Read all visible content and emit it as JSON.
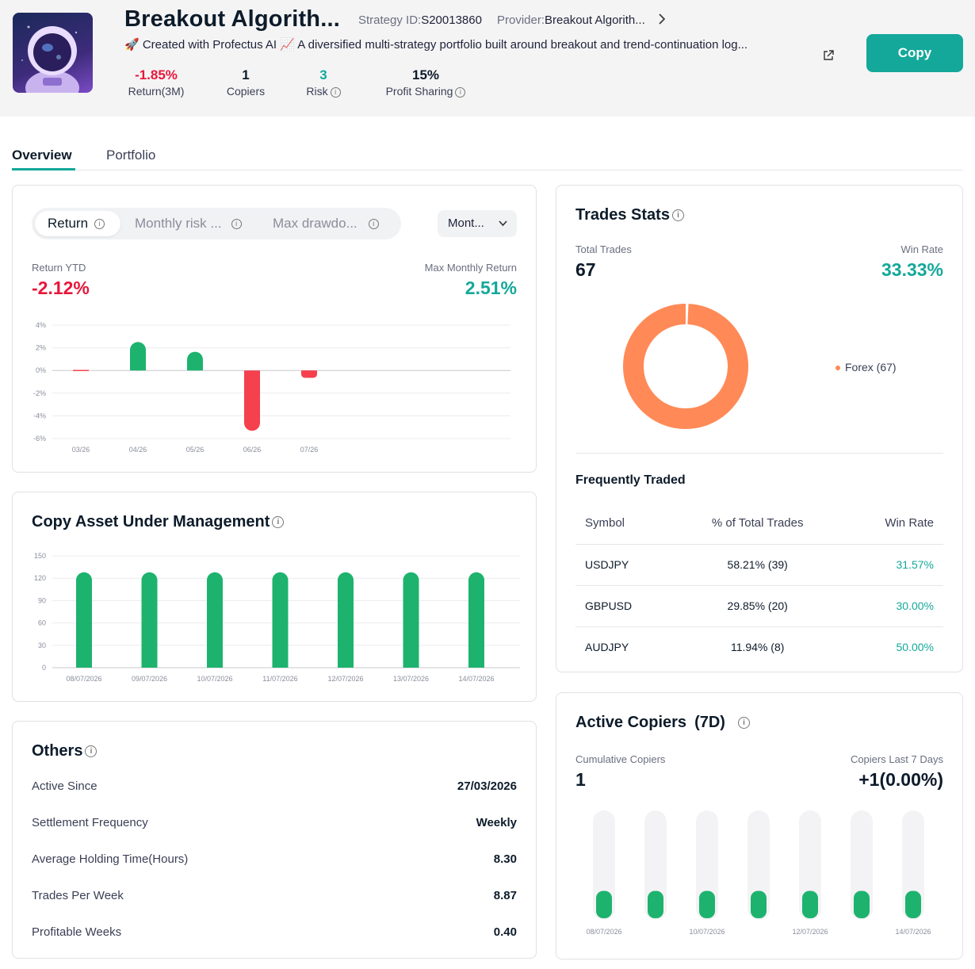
{
  "header": {
    "title": "Breakout Algorith...",
    "strategy_id_label": "Strategy ID:",
    "strategy_id": "S20013860",
    "provider_label": "Provider:",
    "provider": "Breakout Algorith...",
    "description": "🚀 Created with Profectus AI 📈 A diversified multi-strategy portfolio built around breakout and trend-continuation log...",
    "copy_label": "Copy",
    "stats": [
      {
        "value": "-1.85%",
        "label": "Return(3M)"
      },
      {
        "value": "1",
        "label": "Copiers"
      },
      {
        "value": "3",
        "label": "Risk"
      },
      {
        "value": "15%",
        "label": "Profit Sharing"
      }
    ]
  },
  "tabs": [
    {
      "label": "Overview"
    },
    {
      "label": "Portfolio"
    }
  ],
  "return_card": {
    "segments": [
      "Return",
      "Monthly risk ...",
      "Max drawdo..."
    ],
    "dropdown": "Mont...",
    "ytd_label": "Return YTD",
    "ytd_value": "-2.12%",
    "max_label": "Max Monthly Return",
    "max_value": "2.51%"
  },
  "aum_card": {
    "title": "Copy Asset Under Management"
  },
  "others": {
    "title": "Others",
    "rows": [
      {
        "label": "Active Since",
        "value": "27/03/2026"
      },
      {
        "label": "Settlement Frequency",
        "value": "Weekly"
      },
      {
        "label": "Average Holding Time(Hours)",
        "value": "8.30"
      },
      {
        "label": "Trades Per Week",
        "value": "8.87"
      },
      {
        "label": "Profitable Weeks",
        "value": "0.40"
      }
    ]
  },
  "trades": {
    "title": "Trades Stats",
    "total_label": "Total Trades",
    "total_value": "67",
    "winrate_label": "Win Rate",
    "winrate_value": "33.33%",
    "legend": "Forex (67)",
    "freq_title": "Frequently Traded",
    "columns": [
      "Symbol",
      "% of Total Trades",
      "Win Rate"
    ],
    "rows": [
      {
        "symbol": "USDJPY",
        "pct": "58.21% (39)",
        "win": "31.57%"
      },
      {
        "symbol": "GBPUSD",
        "pct": "29.85% (20)",
        "win": "30.00%"
      },
      {
        "symbol": "AUDJPY",
        "pct": "11.94% (8)",
        "win": "50.00%"
      }
    ]
  },
  "copiers": {
    "title": "Active Copiers",
    "title_suffix": "(7D)",
    "cum_label": "Cumulative Copiers",
    "cum_value": "1",
    "last7_label": "Copiers Last 7 Days",
    "last7_value": "+1(0.00%)"
  },
  "colors": {
    "teal": "#14a89a",
    "green": "#1db36e",
    "red": "#f5414d",
    "orange": "#ff8a57"
  },
  "chart_data": [
    {
      "type": "bar",
      "title": "",
      "categories": [
        "03/26",
        "04/26",
        "05/26",
        "06/26",
        "07/26"
      ],
      "values": [
        -0.01,
        2.51,
        1.65,
        -5.32,
        -0.65
      ],
      "yticks": [
        "4%",
        "2%",
        "0%",
        "-2%",
        "-4%",
        "-6%"
      ],
      "ylim": [
        -6,
        4
      ]
    },
    {
      "type": "bar",
      "title": "Copy Asset Under Management",
      "categories": [
        "08/07/2026",
        "09/07/2026",
        "10/07/2026",
        "11/07/2026",
        "12/07/2026",
        "13/07/2026",
        "14/07/2026"
      ],
      "values": [
        128,
        128,
        128,
        128,
        128,
        128,
        128
      ],
      "yticks": [
        "150",
        "120",
        "90",
        "60",
        "30",
        "0"
      ],
      "ylim": [
        0,
        150
      ]
    },
    {
      "type": "pie",
      "title": "Trades Stats",
      "categories": [
        "Forex"
      ],
      "values": [
        67
      ]
    },
    {
      "type": "bar",
      "title": "Active Copiers (7D)",
      "categories": [
        "08/07/2026",
        "09/07/2026",
        "10/07/2026",
        "11/07/2026",
        "12/07/2026",
        "13/07/2026",
        "14/07/2026"
      ],
      "tick_labels": [
        "08/07/2026",
        "",
        "10/07/2026",
        "",
        "12/07/2026",
        "",
        "14/07/2026"
      ],
      "values": [
        1,
        1,
        1,
        1,
        1,
        1,
        1
      ],
      "ylim": [
        0,
        4
      ]
    }
  ]
}
